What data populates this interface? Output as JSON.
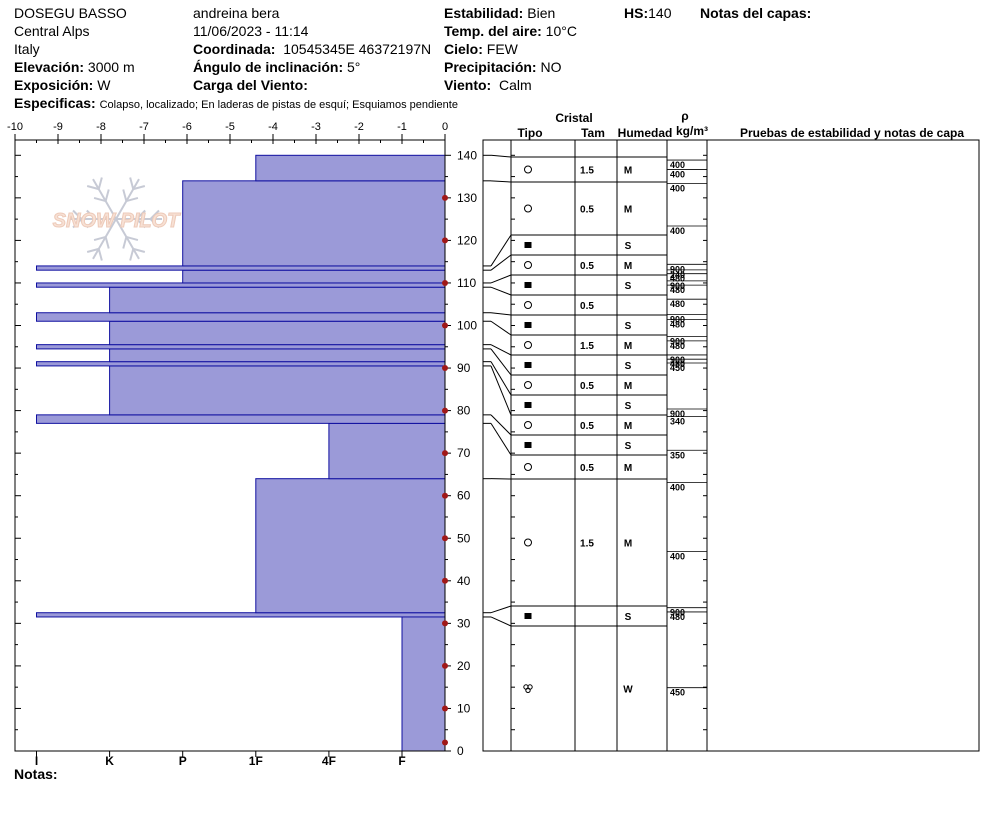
{
  "header": {
    "location": "DOSEGU BASSO",
    "region": "Central Alps",
    "country": "Italy",
    "elevation_label": "Elevación:",
    "elevation_value": "3000 m",
    "aspect_label": "Exposición:",
    "aspect_value": "W",
    "observer": "andreina bera",
    "datetime": "11/06/2023 - 11:14",
    "coord_label": "Coordinada:",
    "coord_value": "10545345E 46372197N",
    "slope_label": "Ángulo de inclinación:",
    "slope_value": "5°",
    "wind_load_label": "Carga del Viento:",
    "wind_load_value": "",
    "stability_label": "Estabilidad:",
    "stability_value": "Bien",
    "air_temp_label": "Temp. del aire:",
    "air_temp_value": "10°C",
    "sky_label": "Cielo:",
    "sky_value": "FEW",
    "precip_label": "Precipitación:",
    "precip_value": "NO",
    "wind_label": "Viento:",
    "wind_value": "Calm",
    "hs_label": "HS:",
    "hs_value": "140",
    "layer_notes_label": "Notas del capas:",
    "specifics_label": "Especificas:",
    "specifics_value": "Colapso, localizado;  En laderas de pistas de esquí;  Esquiamos pendiente"
  },
  "footer": {
    "notes_label": "Notas:"
  },
  "logo_text": "SNOW PILOT",
  "columns": {
    "crystal": "Cristal",
    "type": "Tipo",
    "size": "Tam",
    "moisture": "Humedad",
    "rho": "ρ",
    "density_unit": "kg/m³",
    "tests": "Pruebas de estabilidad y notas de capa"
  },
  "chart_data": {
    "type": "bar",
    "orientation": "horizontal",
    "x_axis": {
      "ticks": [
        -10,
        -9,
        -8,
        -7,
        -6,
        -5,
        -4,
        -3,
        -2,
        -1,
        0
      ],
      "range": [
        -10,
        0
      ]
    },
    "y_axis": {
      "ticks": [
        0,
        10,
        20,
        30,
        40,
        50,
        60,
        70,
        80,
        90,
        100,
        110,
        120,
        130,
        140
      ],
      "range": [
        0,
        140
      ],
      "unit": "cm"
    },
    "hardness_labels": [
      "I",
      "K",
      "P",
      "1F",
      "4F",
      "F"
    ],
    "hardness_scale_positions": {
      "F": -1,
      "4F": -2.7,
      "1F": -4.4,
      "P": -6.1,
      "K": -7.8,
      "I": -9.5
    },
    "temperature_points": [
      {
        "height": 2,
        "temp": 0
      },
      {
        "height": 10,
        "temp": 0
      },
      {
        "height": 20,
        "temp": 0
      },
      {
        "height": 30,
        "temp": 0
      },
      {
        "height": 40,
        "temp": 0
      },
      {
        "height": 50,
        "temp": 0
      },
      {
        "height": 60,
        "temp": 0
      },
      {
        "height": 70,
        "temp": 0
      },
      {
        "height": 80,
        "temp": 0
      },
      {
        "height": 90,
        "temp": 0
      },
      {
        "height": 100,
        "temp": 0
      },
      {
        "height": 110,
        "temp": 0
      },
      {
        "height": 120,
        "temp": 0
      },
      {
        "height": 130,
        "temp": 0
      }
    ],
    "hardness_layers": [
      {
        "bottom": 0,
        "top": 32,
        "hardness": "F"
      },
      {
        "bottom": 31.5,
        "top": 32.5,
        "hardness": "I"
      },
      {
        "bottom": 32.5,
        "top": 64,
        "hardness": "1F"
      },
      {
        "bottom": 64,
        "top": 77,
        "hardness": "4F"
      },
      {
        "bottom": 77,
        "top": 79,
        "hardness": "I"
      },
      {
        "bottom": 79,
        "top": 90.5,
        "hardness": "K"
      },
      {
        "bottom": 90.5,
        "top": 91.5,
        "hardness": "I"
      },
      {
        "bottom": 91.5,
        "top": 94.5,
        "hardness": "K"
      },
      {
        "bottom": 94.5,
        "top": 95.5,
        "hardness": "I"
      },
      {
        "bottom": 95.5,
        "top": 101,
        "hardness": "K"
      },
      {
        "bottom": 101,
        "top": 103,
        "hardness": "I"
      },
      {
        "bottom": 103,
        "top": 109,
        "hardness": "K"
      },
      {
        "bottom": 109,
        "top": 110,
        "hardness": "I"
      },
      {
        "bottom": 110,
        "top": 113,
        "hardness": "P"
      },
      {
        "bottom": 113,
        "top": 114,
        "hardness": "I"
      },
      {
        "bottom": 114,
        "top": 134,
        "hardness": "P"
      },
      {
        "bottom": 134,
        "top": 140,
        "hardness": "1F"
      }
    ],
    "crystal_rows": [
      {
        "type": "round",
        "size": "1.5",
        "moisture": "M"
      },
      {
        "type": "round",
        "size": "0.5",
        "moisture": "M"
      },
      {
        "type": "square",
        "size": "",
        "moisture": "S"
      },
      {
        "type": "round",
        "size": "0.5",
        "moisture": "M"
      },
      {
        "type": "square",
        "size": "",
        "moisture": "S"
      },
      {
        "type": "round",
        "size": "0.5",
        "moisture": ""
      },
      {
        "type": "square",
        "size": "",
        "moisture": "S"
      },
      {
        "type": "round",
        "size": "1.5",
        "moisture": "M"
      },
      {
        "type": "square",
        "size": "",
        "moisture": "S"
      },
      {
        "type": "round",
        "size": "0.5",
        "moisture": "M"
      },
      {
        "type": "square",
        "size": "",
        "moisture": "S"
      },
      {
        "type": "round",
        "size": "0.5",
        "moisture": "M"
      },
      {
        "type": "square",
        "size": "",
        "moisture": "S"
      },
      {
        "type": "round",
        "size": "0.5",
        "moisture": "M"
      },
      {
        "type": "round",
        "size": "1.5",
        "moisture": "M"
      },
      {
        "type": "square",
        "size": "",
        "moisture": "S"
      },
      {
        "type": "melt",
        "size": "",
        "moisture": "W"
      }
    ],
    "density_labels": [
      {
        "height": 137,
        "value": "400"
      },
      {
        "height": 134.8,
        "value": "400"
      },
      {
        "height": 131.5,
        "value": "400"
      },
      {
        "height": 121.5,
        "value": "400"
      },
      {
        "height": 112.5,
        "value": "900"
      },
      {
        "height": 111.2,
        "value": "240"
      },
      {
        "height": 110.3,
        "value": "480"
      },
      {
        "height": 108.6,
        "value": "900"
      },
      {
        "height": 107.6,
        "value": "480"
      },
      {
        "height": 104.3,
        "value": "480"
      },
      {
        "height": 100.7,
        "value": "900"
      },
      {
        "height": 99.5,
        "value": "480"
      },
      {
        "height": 95.5,
        "value": "900"
      },
      {
        "height": 94.5,
        "value": "480"
      },
      {
        "height": 91.2,
        "value": "900"
      },
      {
        "height": 90.2,
        "value": "480"
      },
      {
        "height": 89.3,
        "value": "450"
      },
      {
        "height": 78.5,
        "value": "900"
      },
      {
        "height": 76.7,
        "value": "340"
      },
      {
        "height": 68.8,
        "value": "350"
      },
      {
        "height": 61.2,
        "value": "400"
      },
      {
        "height": 45,
        "value": "400"
      },
      {
        "height": 31.8,
        "value": "900"
      },
      {
        "height": 30.8,
        "value": "480"
      },
      {
        "height": 13,
        "value": "450"
      }
    ]
  }
}
